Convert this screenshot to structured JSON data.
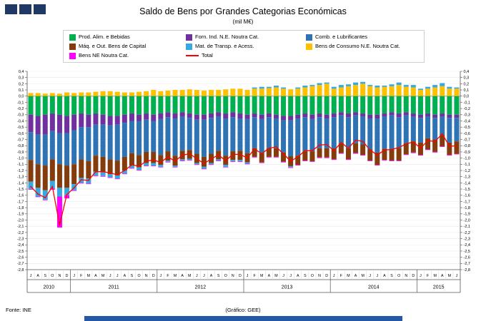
{
  "footer": {
    "source": "Fonte: INE",
    "credit": "(Gráfico: GEE)"
  },
  "legend": [
    {
      "label": "Prod. Alim. e Bebidas",
      "color": "#00B050",
      "swatch": "box"
    },
    {
      "label": "Forn. Ind. N.E. Noutra Cat.",
      "color": "#7030A0",
      "swatch": "box"
    },
    {
      "label": "Comb. e Lubrificantes",
      "color": "#2E74B5",
      "swatch": "box"
    },
    {
      "label": "Máq. e Out. Bens de Capital",
      "color": "#843C0C",
      "swatch": "box"
    },
    {
      "label": "Mat. de Transp. e Acess.",
      "color": "#36A9E1",
      "swatch": "box"
    },
    {
      "label": "Bens de Consumo N.E. Noutra Cat.",
      "color": "#FFC000",
      "swatch": "box"
    },
    {
      "label": "Bens NE Noutra Cat.",
      "color": "#FF00FF",
      "swatch": "box"
    },
    {
      "label": "Total",
      "color": "#FF0000",
      "swatch": "line"
    }
  ],
  "chart_data": {
    "type": "bar",
    "stacked": true,
    "title": "Saldo de Bens por Grandes Categorias Económicas",
    "subtitle": "(mil M€)",
    "xlabel": "",
    "ylabel": "",
    "ylim": [
      -2.8,
      0.4
    ],
    "ytick_step": 0.1,
    "decimal_comma": true,
    "grid": true,
    "legend_position": "top",
    "months": [
      "J",
      "A",
      "S",
      "O",
      "N",
      "D",
      "J",
      "F",
      "M",
      "A",
      "M",
      "J",
      "J",
      "A",
      "S",
      "O",
      "N",
      "D",
      "J",
      "F",
      "M",
      "A",
      "M",
      "J",
      "J",
      "A",
      "S",
      "O",
      "N",
      "D",
      "J",
      "F",
      "M",
      "A",
      "M",
      "J",
      "J",
      "A",
      "S",
      "O",
      "N",
      "D",
      "J",
      "F",
      "M",
      "A",
      "M",
      "J",
      "J",
      "A",
      "S",
      "O",
      "N",
      "D",
      "J",
      "F",
      "M",
      "A",
      "M",
      "J"
    ],
    "year_groups": [
      {
        "label": "2010",
        "months": 6
      },
      {
        "label": "2011",
        "months": 12
      },
      {
        "label": "2012",
        "months": 12
      },
      {
        "label": "2013",
        "months": 12
      },
      {
        "label": "2014",
        "months": 12
      },
      {
        "label": "2015",
        "months": 6
      }
    ],
    "series": [
      {
        "name": "Bens de Consumo N.E. Noutra Cat.",
        "color": "#FFC000",
        "values": [
          0.05,
          0.05,
          0.04,
          0.05,
          0.04,
          0.06,
          0.05,
          0.06,
          0.06,
          0.07,
          0.08,
          0.08,
          0.07,
          0.06,
          0.06,
          0.07,
          0.08,
          0.1,
          0.08,
          0.09,
          0.1,
          0.1,
          0.11,
          0.1,
          0.09,
          0.1,
          0.1,
          0.11,
          0.12,
          0.12,
          0.1,
          0.12,
          0.12,
          0.13,
          0.14,
          0.12,
          0.11,
          0.12,
          0.14,
          0.16,
          0.18,
          0.2,
          0.12,
          0.14,
          0.16,
          0.18,
          0.2,
          0.16,
          0.14,
          0.15,
          0.16,
          0.18,
          0.15,
          0.14,
          0.1,
          0.12,
          0.14,
          0.16,
          0.12,
          0.12
        ]
      },
      {
        "name": "Prod. Alim. e Bebidas",
        "color": "#00B050",
        "values": [
          -0.3,
          -0.32,
          -0.3,
          -0.28,
          -0.3,
          -0.32,
          -0.3,
          -0.28,
          -0.3,
          -0.28,
          -0.3,
          -0.32,
          -0.32,
          -0.3,
          -0.28,
          -0.3,
          -0.28,
          -0.3,
          -0.28,
          -0.26,
          -0.28,
          -0.26,
          -0.28,
          -0.3,
          -0.3,
          -0.28,
          -0.26,
          -0.28,
          -0.26,
          -0.28,
          -0.3,
          -0.28,
          -0.3,
          -0.28,
          -0.3,
          -0.32,
          -0.32,
          -0.3,
          -0.28,
          -0.3,
          -0.28,
          -0.3,
          -0.28,
          -0.26,
          -0.28,
          -0.26,
          -0.28,
          -0.3,
          -0.3,
          -0.28,
          -0.26,
          -0.28,
          -0.26,
          -0.28,
          -0.3,
          -0.28,
          -0.3,
          -0.28,
          -0.3,
          -0.3
        ]
      },
      {
        "name": "Forn. Ind. N.E. Noutra Cat.",
        "color": "#7030A0",
        "values": [
          -0.28,
          -0.3,
          -0.32,
          -0.28,
          -0.3,
          -0.28,
          -0.25,
          -0.22,
          -0.2,
          -0.18,
          -0.16,
          -0.15,
          -0.14,
          -0.13,
          -0.12,
          -0.1,
          -0.1,
          -0.1,
          -0.09,
          -0.08,
          -0.08,
          -0.07,
          -0.07,
          -0.08,
          -0.08,
          -0.07,
          -0.07,
          -0.08,
          -0.08,
          -0.08,
          -0.07,
          -0.06,
          -0.07,
          -0.06,
          -0.06,
          -0.07,
          -0.07,
          -0.06,
          -0.06,
          -0.07,
          -0.06,
          -0.06,
          -0.06,
          -0.05,
          -0.06,
          -0.05,
          -0.05,
          -0.06,
          -0.06,
          -0.05,
          -0.05,
          -0.06,
          -0.05,
          -0.05,
          -0.05,
          -0.05,
          -0.05,
          -0.05,
          -0.05,
          -0.05
        ]
      },
      {
        "name": "Comb. e Lubrificantes",
        "color": "#2E74B5",
        "values": [
          -0.45,
          -0.48,
          -0.5,
          -0.46,
          -0.5,
          -0.52,
          -0.55,
          -0.52,
          -0.55,
          -0.5,
          -0.52,
          -0.55,
          -0.58,
          -0.55,
          -0.52,
          -0.55,
          -0.52,
          -0.5,
          -0.58,
          -0.55,
          -0.6,
          -0.55,
          -0.52,
          -0.55,
          -0.6,
          -0.58,
          -0.55,
          -0.6,
          -0.55,
          -0.52,
          -0.55,
          -0.5,
          -0.55,
          -0.5,
          -0.48,
          -0.52,
          -0.58,
          -0.6,
          -0.55,
          -0.52,
          -0.5,
          -0.48,
          -0.5,
          -0.45,
          -0.5,
          -0.45,
          -0.45,
          -0.5,
          -0.55,
          -0.52,
          -0.55,
          -0.5,
          -0.45,
          -0.4,
          -0.4,
          -0.35,
          -0.35,
          -0.3,
          -0.4,
          -0.38
        ]
      },
      {
        "name": "Máq. e Out. Bens de Capital",
        "color": "#843C0C",
        "values": [
          -0.35,
          -0.38,
          -0.4,
          -0.35,
          -0.38,
          -0.36,
          -0.32,
          -0.3,
          -0.28,
          -0.26,
          -0.25,
          -0.24,
          -0.24,
          -0.22,
          -0.2,
          -0.2,
          -0.18,
          -0.18,
          -0.16,
          -0.15,
          -0.16,
          -0.14,
          -0.14,
          -0.15,
          -0.16,
          -0.15,
          -0.14,
          -0.15,
          -0.14,
          -0.15,
          -0.15,
          -0.14,
          -0.15,
          -0.14,
          -0.14,
          -0.15,
          -0.16,
          -0.15,
          -0.15,
          -0.16,
          -0.15,
          -0.15,
          -0.18,
          -0.16,
          -0.18,
          -0.16,
          -0.17,
          -0.18,
          -0.2,
          -0.18,
          -0.18,
          -0.2,
          -0.18,
          -0.18,
          -0.2,
          -0.18,
          -0.2,
          -0.18,
          -0.2,
          -0.2
        ]
      },
      {
        "name": "Mat. de Transp. e Acess.",
        "color": "#36A9E1",
        "values": [
          -0.12,
          -0.14,
          -0.15,
          -0.12,
          -0.14,
          -0.12,
          -0.1,
          -0.08,
          -0.08,
          -0.06,
          -0.06,
          -0.05,
          -0.05,
          -0.05,
          -0.04,
          -0.04,
          -0.04,
          -0.04,
          -0.03,
          -0.02,
          -0.02,
          -0.02,
          -0.02,
          -0.02,
          -0.03,
          -0.02,
          -0.02,
          -0.03,
          -0.02,
          -0.02,
          -0.02,
          0.02,
          0.03,
          0.02,
          0.03,
          0.02,
          -0.02,
          0.02,
          0.03,
          0.02,
          0.03,
          0.02,
          0.03,
          0.04,
          0.03,
          0.04,
          0.03,
          0.02,
          0.03,
          0.02,
          0.03,
          0.04,
          0.03,
          0.04,
          0.02,
          0.03,
          0.04,
          0.05,
          0.03,
          0.02
        ]
      },
      {
        "name": "Bens NE Noutra Cat.",
        "color": "#FF00FF",
        "values": [
          -0.01,
          -0.01,
          -0.01,
          -0.02,
          -0.5,
          -0.05,
          -0.01,
          -0.01,
          -0.01,
          -0.01,
          -0.01,
          -0.01,
          -0.01,
          -0.01,
          -0.01,
          -0.01,
          -0.01,
          -0.01,
          -0.01,
          -0.01,
          -0.01,
          -0.01,
          -0.01,
          -0.01,
          -0.01,
          -0.01,
          -0.01,
          -0.01,
          -0.01,
          -0.01,
          -0.01,
          -0.01,
          -0.01,
          -0.01,
          -0.01,
          -0.01,
          -0.01,
          -0.01,
          -0.01,
          -0.01,
          -0.01,
          -0.01,
          -0.01,
          -0.01,
          -0.01,
          -0.01,
          -0.01,
          -0.01,
          -0.01,
          -0.01,
          -0.01,
          -0.01,
          -0.01,
          -0.01,
          -0.01,
          -0.01,
          -0.01,
          -0.01,
          -0.01,
          -0.01
        ]
      }
    ],
    "line_series": {
      "name": "Total",
      "color": "#FF0000",
      "values": [
        -1.46,
        -1.58,
        -1.64,
        -1.46,
        -2.08,
        -1.59,
        -1.48,
        -1.35,
        -1.36,
        -1.22,
        -1.22,
        -1.24,
        -1.27,
        -1.2,
        -1.11,
        -1.13,
        -1.05,
        -1.03,
        -1.07,
        -0.98,
        -1.05,
        -0.95,
        -0.93,
        -1.01,
        -1.09,
        -1.01,
        -0.95,
        -1.04,
        -0.94,
        -0.94,
        -1.0,
        -0.85,
        -0.93,
        -0.84,
        -0.82,
        -0.93,
        -1.05,
        -0.98,
        -0.88,
        -0.88,
        -0.79,
        -0.78,
        -0.88,
        -0.75,
        -0.84,
        -0.71,
        -0.73,
        -0.87,
        -0.95,
        -0.87,
        -0.86,
        -0.83,
        -0.77,
        -0.74,
        -0.84,
        -0.72,
        -0.73,
        -0.61,
        -0.81,
        -0.8
      ]
    }
  }
}
